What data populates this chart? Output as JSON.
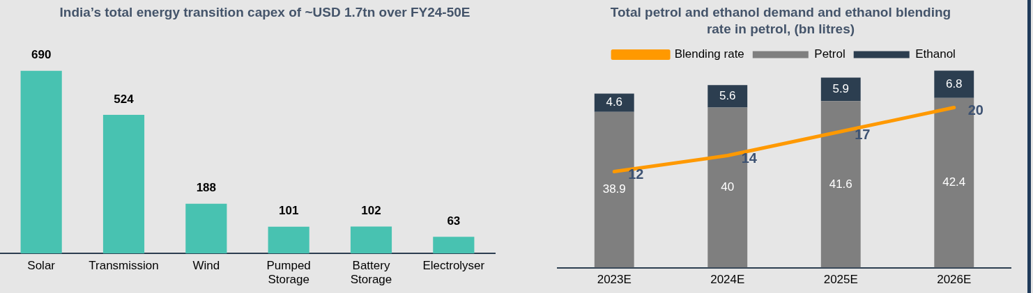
{
  "chart_data": [
    {
      "type": "bar",
      "title": "India’s total energy transition capex of ~USD 1.7tn over FY24-50E",
      "categories": [
        "Solar",
        "Transmission",
        "Wind",
        "Pumped Storage",
        "Battery Storage",
        "Electrolyser"
      ],
      "values": [
        690,
        524,
        188,
        101,
        102,
        63
      ],
      "color": "#48c2b1",
      "data_labels": true,
      "legend": false,
      "tick_labels": "x",
      "grid": false
    },
    {
      "type": "bar",
      "title": "Total petrol and ethanol demand and ethanol blending rate in petrol, (bn litres)",
      "categories": [
        "2023E",
        "2024E",
        "2025E",
        "2026E"
      ],
      "stacked": true,
      "series": [
        {
          "name": "Petrol",
          "color": "#7f7f7f",
          "values": [
            38.9,
            40,
            41.6,
            42.4
          ]
        },
        {
          "name": "Ethanol",
          "color": "#2c3e50",
          "values": [
            4.6,
            5.6,
            5.9,
            6.8
          ]
        },
        {
          "name": "Blending rate",
          "type": "line",
          "axis": "y2",
          "color": "#ff9900",
          "values": [
            12,
            14,
            17,
            20
          ]
        }
      ],
      "data_labels": true,
      "legend": "top",
      "marker": "none",
      "tick_labels": "x",
      "grid": false
    }
  ]
}
